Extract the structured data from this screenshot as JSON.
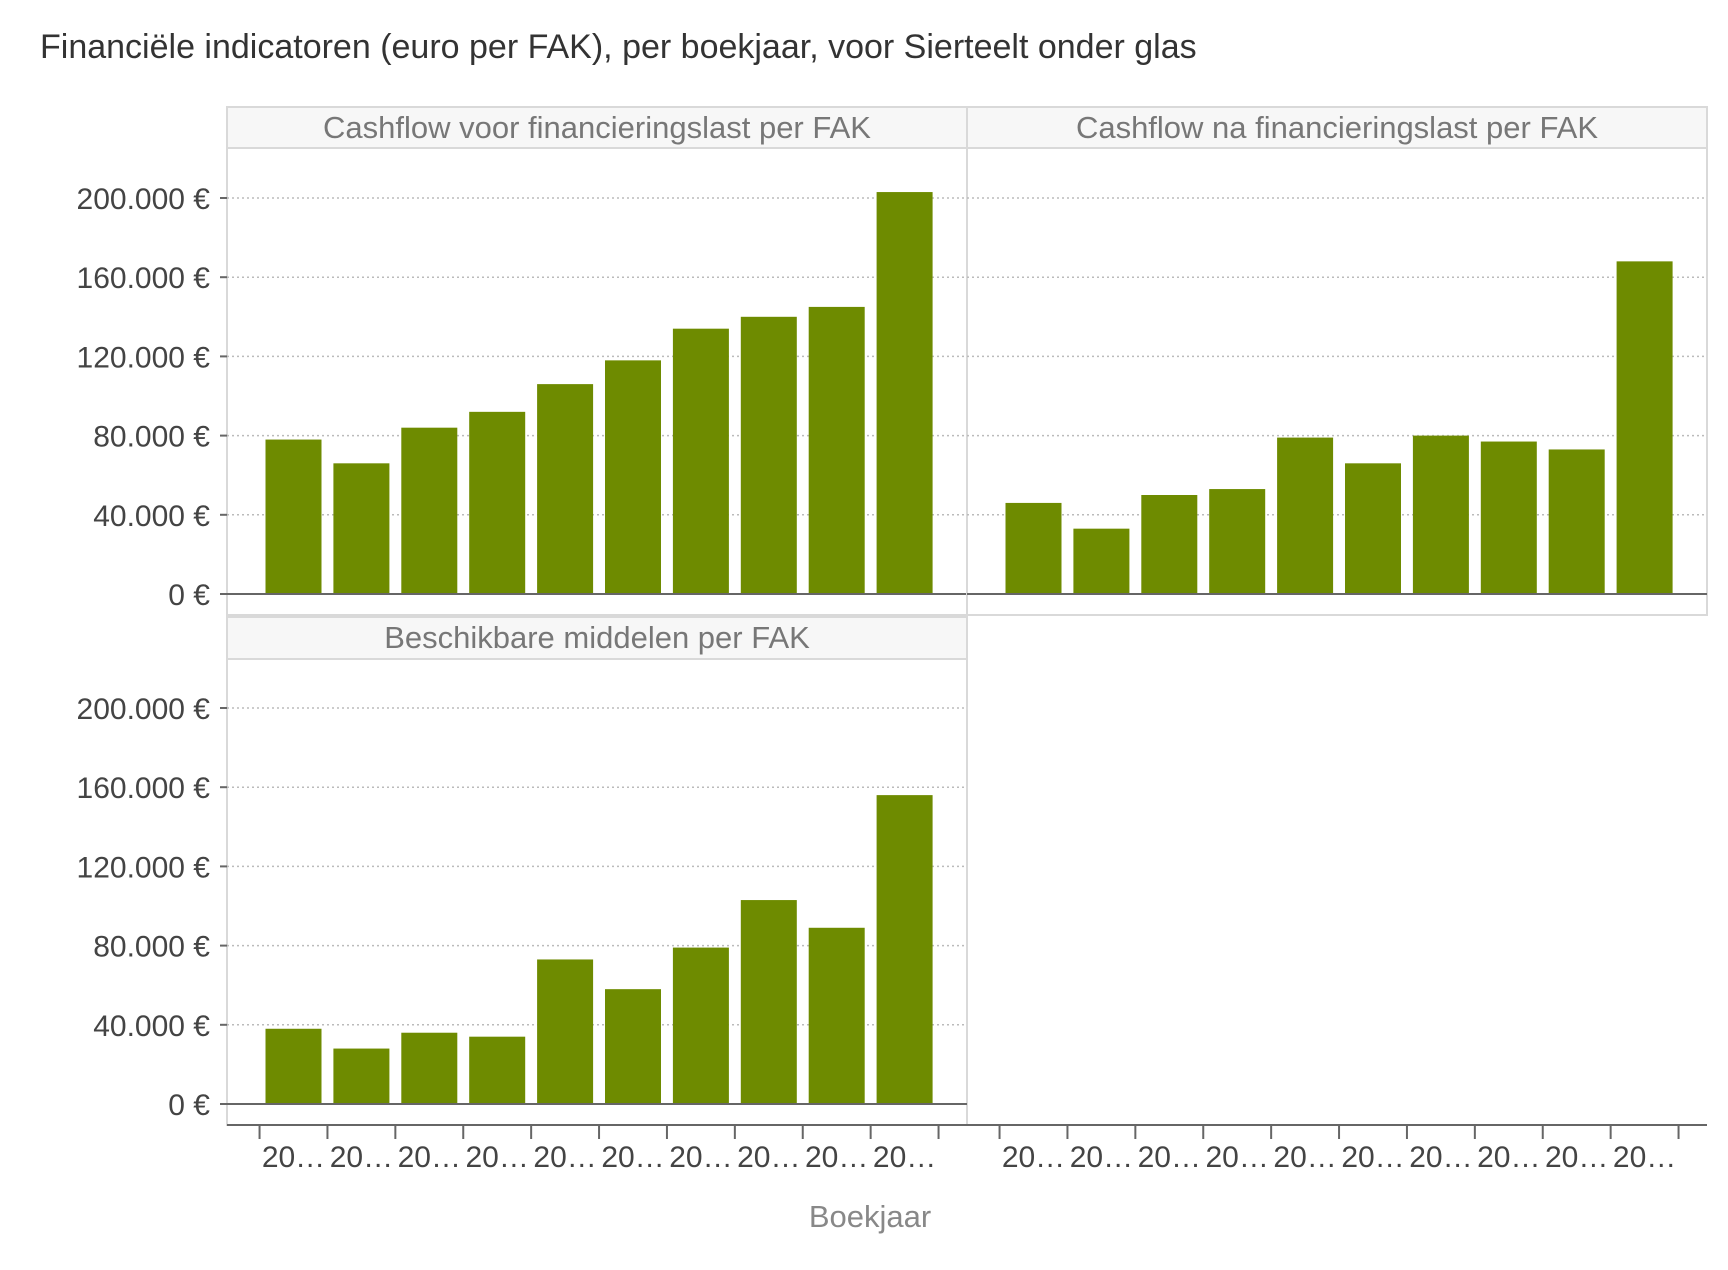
{
  "title": "Financiële indicatoren (euro per FAK), per boekjaar, voor Sierteelt onder glas",
  "colors": {
    "bar": "#6e8b00",
    "grid": "#bbbbbb",
    "axis": "#666666",
    "strip_bg": "#f7f7f7",
    "strip_border": "#d9d9d9",
    "text": "#444444",
    "strip_text": "#777777"
  },
  "chart_data": {
    "type": "bar",
    "layout": "facets",
    "xlabel": "Boekjaar",
    "ylabel": "",
    "ylim": [
      0,
      200000
    ],
    "yticks": [
      0,
      40000,
      80000,
      120000,
      160000,
      200000
    ],
    "ytick_labels": [
      "0 €",
      "40.000 €",
      "80.000 €",
      "120.000 €",
      "160.000 €",
      "200.000 €"
    ],
    "xtick_labels": [
      "20…",
      "20…",
      "20…",
      "20…",
      "20…",
      "20…",
      "20…",
      "20…",
      "20…",
      "20…"
    ],
    "grid": true,
    "facets": [
      {
        "title": "Cashflow voor financieringslast per FAK",
        "values": [
          78000,
          66000,
          84000,
          92000,
          106000,
          118000,
          134000,
          140000,
          145000,
          203000
        ]
      },
      {
        "title": "Cashflow na financieringslast per FAK",
        "values": [
          46000,
          33000,
          50000,
          53000,
          79000,
          66000,
          80000,
          77000,
          73000,
          168000
        ]
      },
      {
        "title": "Beschikbare middelen per FAK",
        "values": [
          38000,
          28000,
          36000,
          34000,
          73000,
          58000,
          79000,
          103000,
          89000,
          156000
        ]
      }
    ]
  }
}
